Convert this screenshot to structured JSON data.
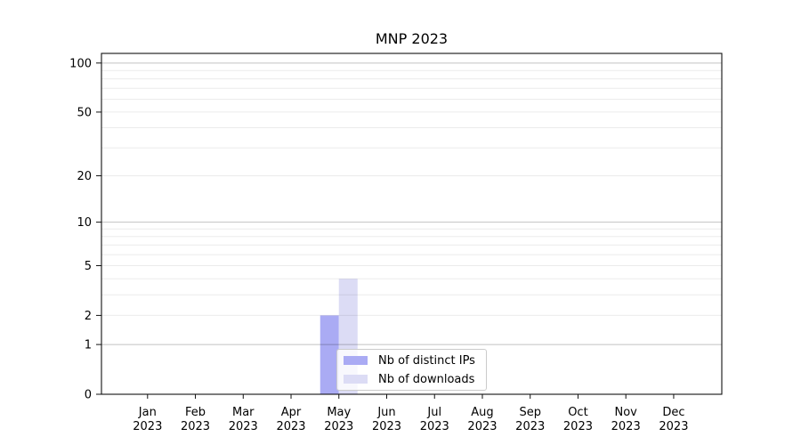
{
  "chart_data": {
    "type": "bar",
    "title": "MNP 2023",
    "categories": [
      "Jan",
      "Feb",
      "Mar",
      "Apr",
      "May",
      "Jun",
      "Jul",
      "Aug",
      "Sep",
      "Oct",
      "Nov",
      "Dec"
    ],
    "category_year_line": "2023",
    "series": [
      {
        "name": "Nb of distinct IPs",
        "color": "#aaabf4",
        "values": [
          0,
          0,
          0,
          0,
          2,
          0,
          0,
          0,
          0,
          0,
          0,
          0
        ]
      },
      {
        "name": "Nb of downloads",
        "color": "#dcdcf5",
        "values": [
          0,
          0,
          0,
          0,
          4,
          0,
          0,
          0,
          0,
          0,
          0,
          0
        ]
      }
    ],
    "xlabel": "",
    "ylabel": "",
    "yscale": "symlog-log1p",
    "ylim": [
      0,
      114.5
    ],
    "y_ticks": [
      0,
      1,
      2,
      5,
      10,
      20,
      50,
      100
    ],
    "y_major_gridlines": [
      1,
      10,
      100
    ],
    "y_minor_gridlines": [
      2,
      3,
      4,
      5,
      6,
      7,
      8,
      9,
      20,
      30,
      40,
      50,
      60,
      70,
      80,
      90
    ],
    "grid": true,
    "legend_position": "lower-center-inside",
    "colors": {
      "axis": "#111111",
      "grid_major": "rgba(0,0,0,0.24)",
      "grid_minor": "rgba(0,0,0,0.08)",
      "legend_border": "#cbcbcb",
      "background": "#ffffff"
    }
  }
}
